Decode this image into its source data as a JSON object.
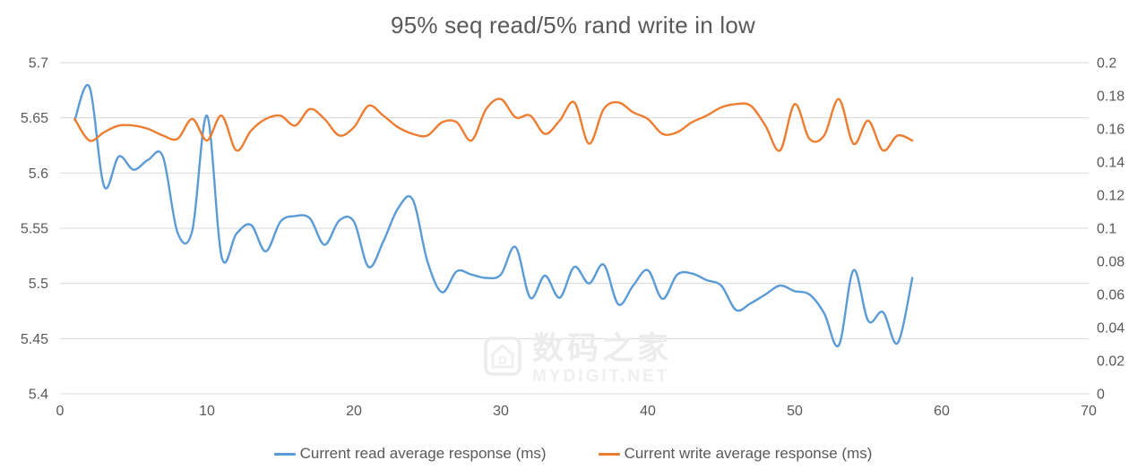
{
  "title": "95% seq read/5% rand write in low",
  "colors": {
    "read_series": "#5B9BD5",
    "write_series": "#ED7D31",
    "gridline": "#D9D9D9",
    "axis_text": "#595959",
    "watermark": "#ececec",
    "background": "#ffffff"
  },
  "legend": {
    "position": "bottom-center",
    "read": {
      "label": "Current read average response (ms)",
      "color": "#5B9BD5"
    },
    "write": {
      "label": "Current write average response (ms)",
      "color": "#ED7D31"
    }
  },
  "watermark": {
    "logo_icon": "house-d-logo",
    "text_cn": "数码之家",
    "text_en": "MYDIGIT.NET"
  },
  "chart_data": {
    "type": "line",
    "title": "95% seq read/5% rand write in low",
    "grid": "horizontal",
    "legend_position": "bottom",
    "x_axis": {
      "range": [
        0,
        70
      ],
      "ticks": [
        0,
        10,
        20,
        30,
        40,
        50,
        60,
        70
      ]
    },
    "y_axis_left": {
      "range": [
        5.4,
        5.7
      ],
      "ticks": [
        5.7,
        5.65,
        5.6,
        5.55,
        5.5,
        5.45,
        5.4
      ]
    },
    "y_axis_right": {
      "range": [
        0,
        0.2
      ],
      "ticks": [
        0.2,
        0.18,
        0.16,
        0.14,
        0.12,
        0.1,
        0.08,
        0.06,
        0.04,
        0.02,
        0
      ]
    },
    "x": [
      1,
      2,
      3,
      4,
      5,
      6,
      7,
      8,
      9,
      10,
      11,
      12,
      13,
      14,
      15,
      16,
      17,
      18,
      19,
      20,
      21,
      22,
      23,
      24,
      25,
      26,
      27,
      28,
      29,
      30,
      31,
      32,
      33,
      34,
      35,
      36,
      37,
      38,
      39,
      40,
      41,
      42,
      43,
      44,
      45,
      46,
      47,
      48,
      49,
      50,
      51,
      52,
      53,
      54,
      55,
      56,
      57,
      58
    ],
    "series": [
      {
        "name": "Current read average response (ms)",
        "axis": "left",
        "color": "#5B9BD5",
        "values": [
          5.648,
          5.678,
          5.588,
          5.615,
          5.603,
          5.612,
          5.615,
          5.546,
          5.548,
          5.652,
          5.524,
          5.545,
          5.553,
          5.529,
          5.556,
          5.561,
          5.559,
          5.535,
          5.557,
          5.556,
          5.515,
          5.538,
          5.568,
          5.576,
          5.52,
          5.492,
          5.511,
          5.508,
          5.505,
          5.508,
          5.533,
          5.487,
          5.507,
          5.487,
          5.515,
          5.5,
          5.517,
          5.481,
          5.498,
          5.512,
          5.486,
          5.508,
          5.509,
          5.503,
          5.498,
          5.476,
          5.482,
          5.49,
          5.498,
          5.493,
          5.49,
          5.473,
          5.444,
          5.512,
          5.466,
          5.474,
          5.446,
          5.505
        ]
      },
      {
        "name": "Current write average response (ms)",
        "axis": "right",
        "color": "#ED7D31",
        "values": [
          0.166,
          0.153,
          0.158,
          0.162,
          0.162,
          0.16,
          0.156,
          0.154,
          0.166,
          0.153,
          0.168,
          0.147,
          0.159,
          0.166,
          0.168,
          0.162,
          0.172,
          0.166,
          0.156,
          0.161,
          0.174,
          0.168,
          0.161,
          0.157,
          0.156,
          0.164,
          0.164,
          0.153,
          0.172,
          0.178,
          0.167,
          0.168,
          0.157,
          0.165,
          0.176,
          0.151,
          0.172,
          0.176,
          0.17,
          0.166,
          0.157,
          0.158,
          0.164,
          0.168,
          0.173,
          0.175,
          0.174,
          0.162,
          0.147,
          0.175,
          0.154,
          0.156,
          0.178,
          0.151,
          0.165,
          0.147,
          0.156,
          0.153
        ]
      }
    ]
  }
}
